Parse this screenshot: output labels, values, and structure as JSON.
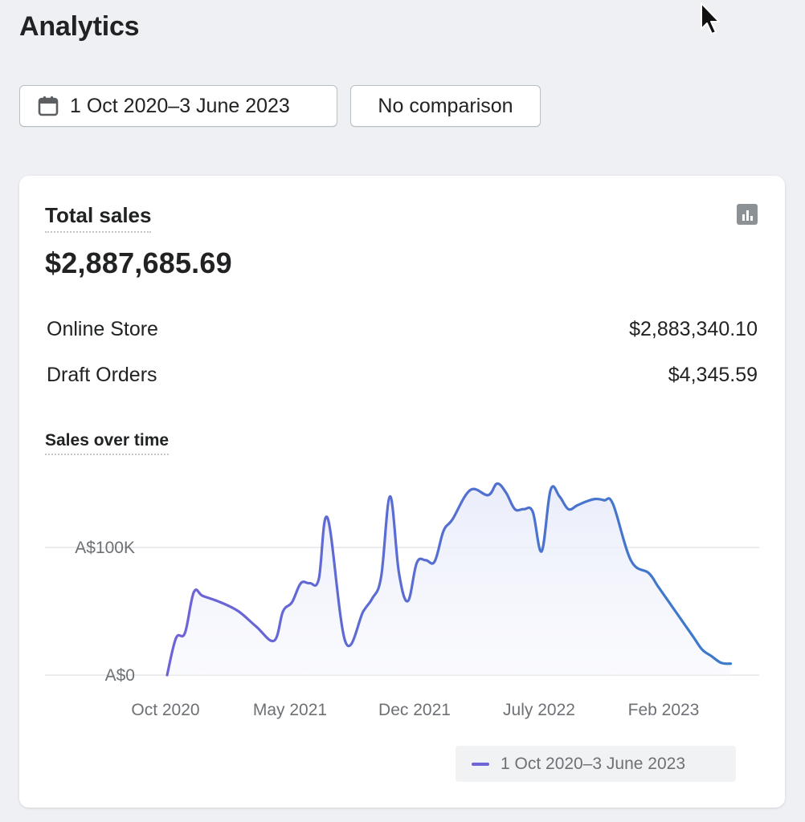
{
  "page": {
    "title": "Analytics"
  },
  "filters": {
    "date_range_label": "1 Oct 2020–3 June 2023",
    "date_icon": "calendar-icon",
    "comparison_label": "No comparison"
  },
  "card": {
    "title": "Total sales",
    "icon": "bar-chart-icon",
    "total_value": "$2,887,685.69",
    "breakdown": [
      {
        "label": "Online Store",
        "value": "$2,883,340.10"
      },
      {
        "label": "Draft Orders",
        "value": "$4,345.59"
      }
    ]
  },
  "chart": {
    "title": "Sales over time",
    "legend_label": "1 Oct 2020–3 June 2023",
    "colors": {
      "line_start": "#6f63d8",
      "line_end": "#3a7bc8",
      "fill": "#eef0fb",
      "grid": "#e4e5e7"
    }
  },
  "chart_data": {
    "type": "area",
    "title": "Sales over time",
    "xlabel": "",
    "ylabel": "",
    "x_tick_labels": [
      "Oct 2020",
      "May 2021",
      "Dec 2021",
      "July 2022",
      "Feb 2023"
    ],
    "y_tick_labels": [
      "A$0",
      "A$100K"
    ],
    "y_ticks": [
      0,
      100000
    ],
    "ylim": [
      0,
      160000
    ],
    "grid": true,
    "legend_position": "bottom-right",
    "series": [
      {
        "name": "1 Oct 2020–3 June 2023",
        "x": [
          0.0,
          0.5,
          1.0,
          1.5,
          2.0,
          3.0,
          4.0,
          5.0,
          6.0,
          6.5,
          7.0,
          7.5,
          8.0,
          8.5,
          9.0,
          10.0,
          11.0,
          11.5,
          12.0,
          12.5,
          13.0,
          13.5,
          14.0,
          14.5,
          15.0,
          15.5,
          16.0,
          17.0,
          18.0,
          18.5,
          19.0,
          19.5,
          20.0,
          20.5,
          21.0,
          21.5,
          22.0,
          22.5,
          23.0,
          23.5,
          24.0,
          24.5,
          25.0,
          26.0,
          27.0,
          27.5,
          28.0,
          28.5,
          29.0,
          29.5,
          30.0,
          30.5,
          31.0,
          31.3,
          31.6
        ],
        "values": [
          0,
          29000,
          33000,
          65000,
          62000,
          57000,
          50000,
          38000,
          27000,
          50000,
          57000,
          72000,
          72000,
          75000,
          123000,
          26000,
          50000,
          60000,
          77000,
          140000,
          80000,
          58000,
          88000,
          90000,
          89000,
          113000,
          122000,
          145000,
          141000,
          150000,
          143000,
          130000,
          130000,
          128000,
          97000,
          145000,
          140000,
          130000,
          133000,
          136000,
          138000,
          137000,
          134000,
          90000,
          80000,
          70000,
          60000,
          50000,
          40000,
          30000,
          20000,
          15000,
          10000,
          9000,
          9000
        ]
      }
    ]
  }
}
